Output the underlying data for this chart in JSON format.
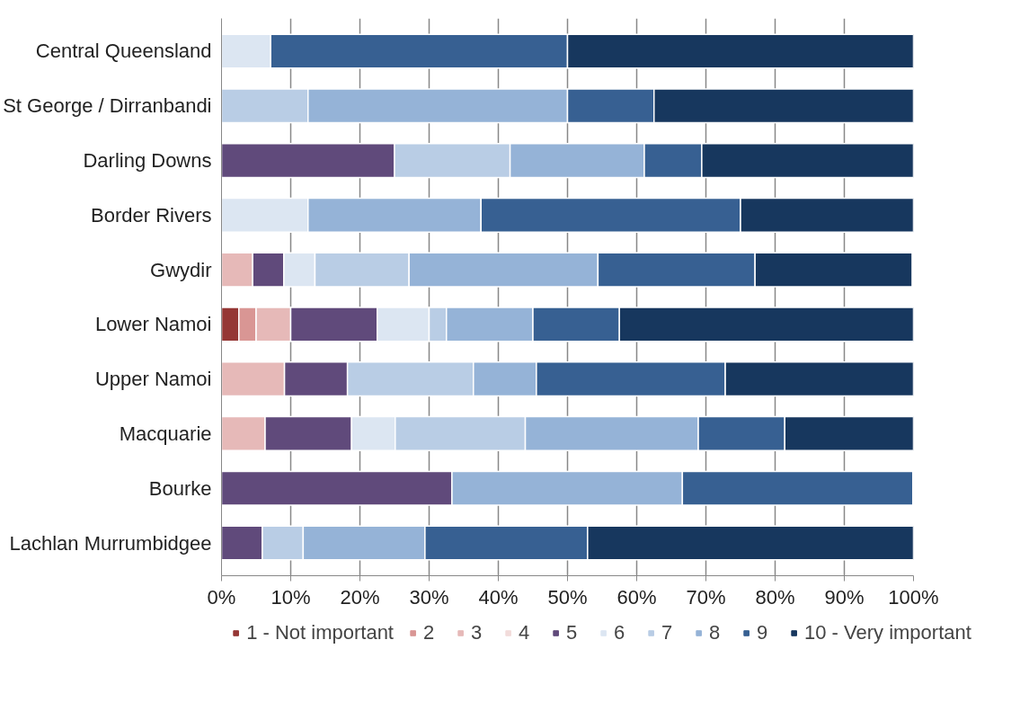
{
  "chart_data": {
    "type": "bar",
    "orientation": "horizontal",
    "stacked": true,
    "categories": [
      "Central Queensland",
      "St George / Dirranbandi",
      "Darling Downs",
      "Border Rivers",
      "Gwydir",
      "Lower Namoi",
      "Upper Namoi",
      "Macquarie",
      "Bourke",
      "Lachlan Murrumbidgee"
    ],
    "series": [
      {
        "name": "1 - Not important",
        "color": "#953735",
        "values": [
          null,
          null,
          null,
          null,
          null,
          2.5,
          null,
          null,
          null,
          null
        ]
      },
      {
        "name": "2",
        "color": "#d99694",
        "values": [
          null,
          null,
          null,
          null,
          null,
          2.5,
          null,
          null,
          null,
          null
        ]
      },
      {
        "name": "3",
        "color": "#e6b9b8",
        "values": [
          null,
          null,
          null,
          null,
          4.5,
          5,
          9.1,
          6.3,
          null,
          null
        ]
      },
      {
        "name": "4",
        "color": "#f2dcdb",
        "values": [
          null,
          null,
          null,
          null,
          null,
          null,
          null,
          null,
          null,
          null
        ]
      },
      {
        "name": "5",
        "color": "#604a7b",
        "values": [
          null,
          null,
          25,
          null,
          4.5,
          12.5,
          9.1,
          12.5,
          33.3,
          5.9
        ]
      },
      {
        "name": "6",
        "color": "#dce6f2",
        "values": [
          7.1,
          null,
          null,
          12.5,
          4.5,
          7.5,
          null,
          6.3,
          null,
          null
        ]
      },
      {
        "name": "7",
        "color": "#b9cde5",
        "values": [
          null,
          12.5,
          16.7,
          null,
          13.6,
          2.5,
          18.2,
          18.8,
          null,
          5.9
        ]
      },
      {
        "name": "8",
        "color": "#95b3d7",
        "values": [
          null,
          37.5,
          19.4,
          25,
          27.3,
          12.5,
          9.1,
          25,
          33.3,
          17.6
        ]
      },
      {
        "name": "9",
        "color": "#376092",
        "values": [
          42.9,
          12.5,
          8.3,
          37.5,
          22.7,
          12.5,
          27.3,
          12.5,
          33.3,
          23.5
        ]
      },
      {
        "name": "10 - Very important",
        "color": "#17375e",
        "values": [
          50,
          37.5,
          30.6,
          25,
          22.7,
          42.5,
          27.3,
          18.8,
          null,
          47.1
        ]
      }
    ],
    "xlim": [
      0,
      100
    ],
    "xticks": [
      {
        "value": 0,
        "label": "0%"
      },
      {
        "value": 10,
        "label": "10%"
      },
      {
        "value": 20,
        "label": "20%"
      },
      {
        "value": 30,
        "label": "30%"
      },
      {
        "value": 40,
        "label": "40%"
      },
      {
        "value": 50,
        "label": "50%"
      },
      {
        "value": 60,
        "label": "60%"
      },
      {
        "value": 70,
        "label": "70%"
      },
      {
        "value": 80,
        "label": "80%"
      },
      {
        "value": 90,
        "label": "90%"
      },
      {
        "value": 100,
        "label": "100%"
      }
    ],
    "grid": "x",
    "legend": "bottom"
  }
}
